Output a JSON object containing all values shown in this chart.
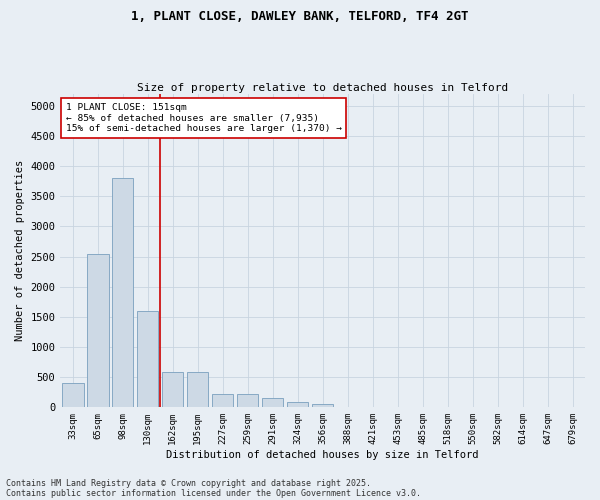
{
  "title_line1": "1, PLANT CLOSE, DAWLEY BANK, TELFORD, TF4 2GT",
  "title_line2": "Size of property relative to detached houses in Telford",
  "xlabel": "Distribution of detached houses by size in Telford",
  "ylabel": "Number of detached properties",
  "categories": [
    "33sqm",
    "65sqm",
    "98sqm",
    "130sqm",
    "162sqm",
    "195sqm",
    "227sqm",
    "259sqm",
    "291sqm",
    "324sqm",
    "356sqm",
    "388sqm",
    "421sqm",
    "453sqm",
    "485sqm",
    "518sqm",
    "550sqm",
    "582sqm",
    "614sqm",
    "647sqm",
    "679sqm"
  ],
  "values": [
    400,
    2550,
    3800,
    1600,
    580,
    580,
    220,
    220,
    150,
    90,
    50,
    0,
    0,
    0,
    0,
    0,
    0,
    0,
    0,
    0,
    0
  ],
  "bar_color": "#cdd9e5",
  "bar_edge_color": "#7aa0be",
  "vline_x_index": 3.5,
  "vline_color": "#cc0000",
  "annotation_text": "1 PLANT CLOSE: 151sqm\n← 85% of detached houses are smaller (7,935)\n15% of semi-detached houses are larger (1,370) →",
  "annotation_box_facecolor": "#ffffff",
  "annotation_box_edgecolor": "#cc0000",
  "ylim": [
    0,
    5200
  ],
  "yticks": [
    0,
    500,
    1000,
    1500,
    2000,
    2500,
    3000,
    3500,
    4000,
    4500,
    5000
  ],
  "grid_color": "#c8d4e0",
  "background_color": "#e8eef4",
  "plot_bg_color": "#e8eef4",
  "footnote1": "Contains HM Land Registry data © Crown copyright and database right 2025.",
  "footnote2": "Contains public sector information licensed under the Open Government Licence v3.0."
}
